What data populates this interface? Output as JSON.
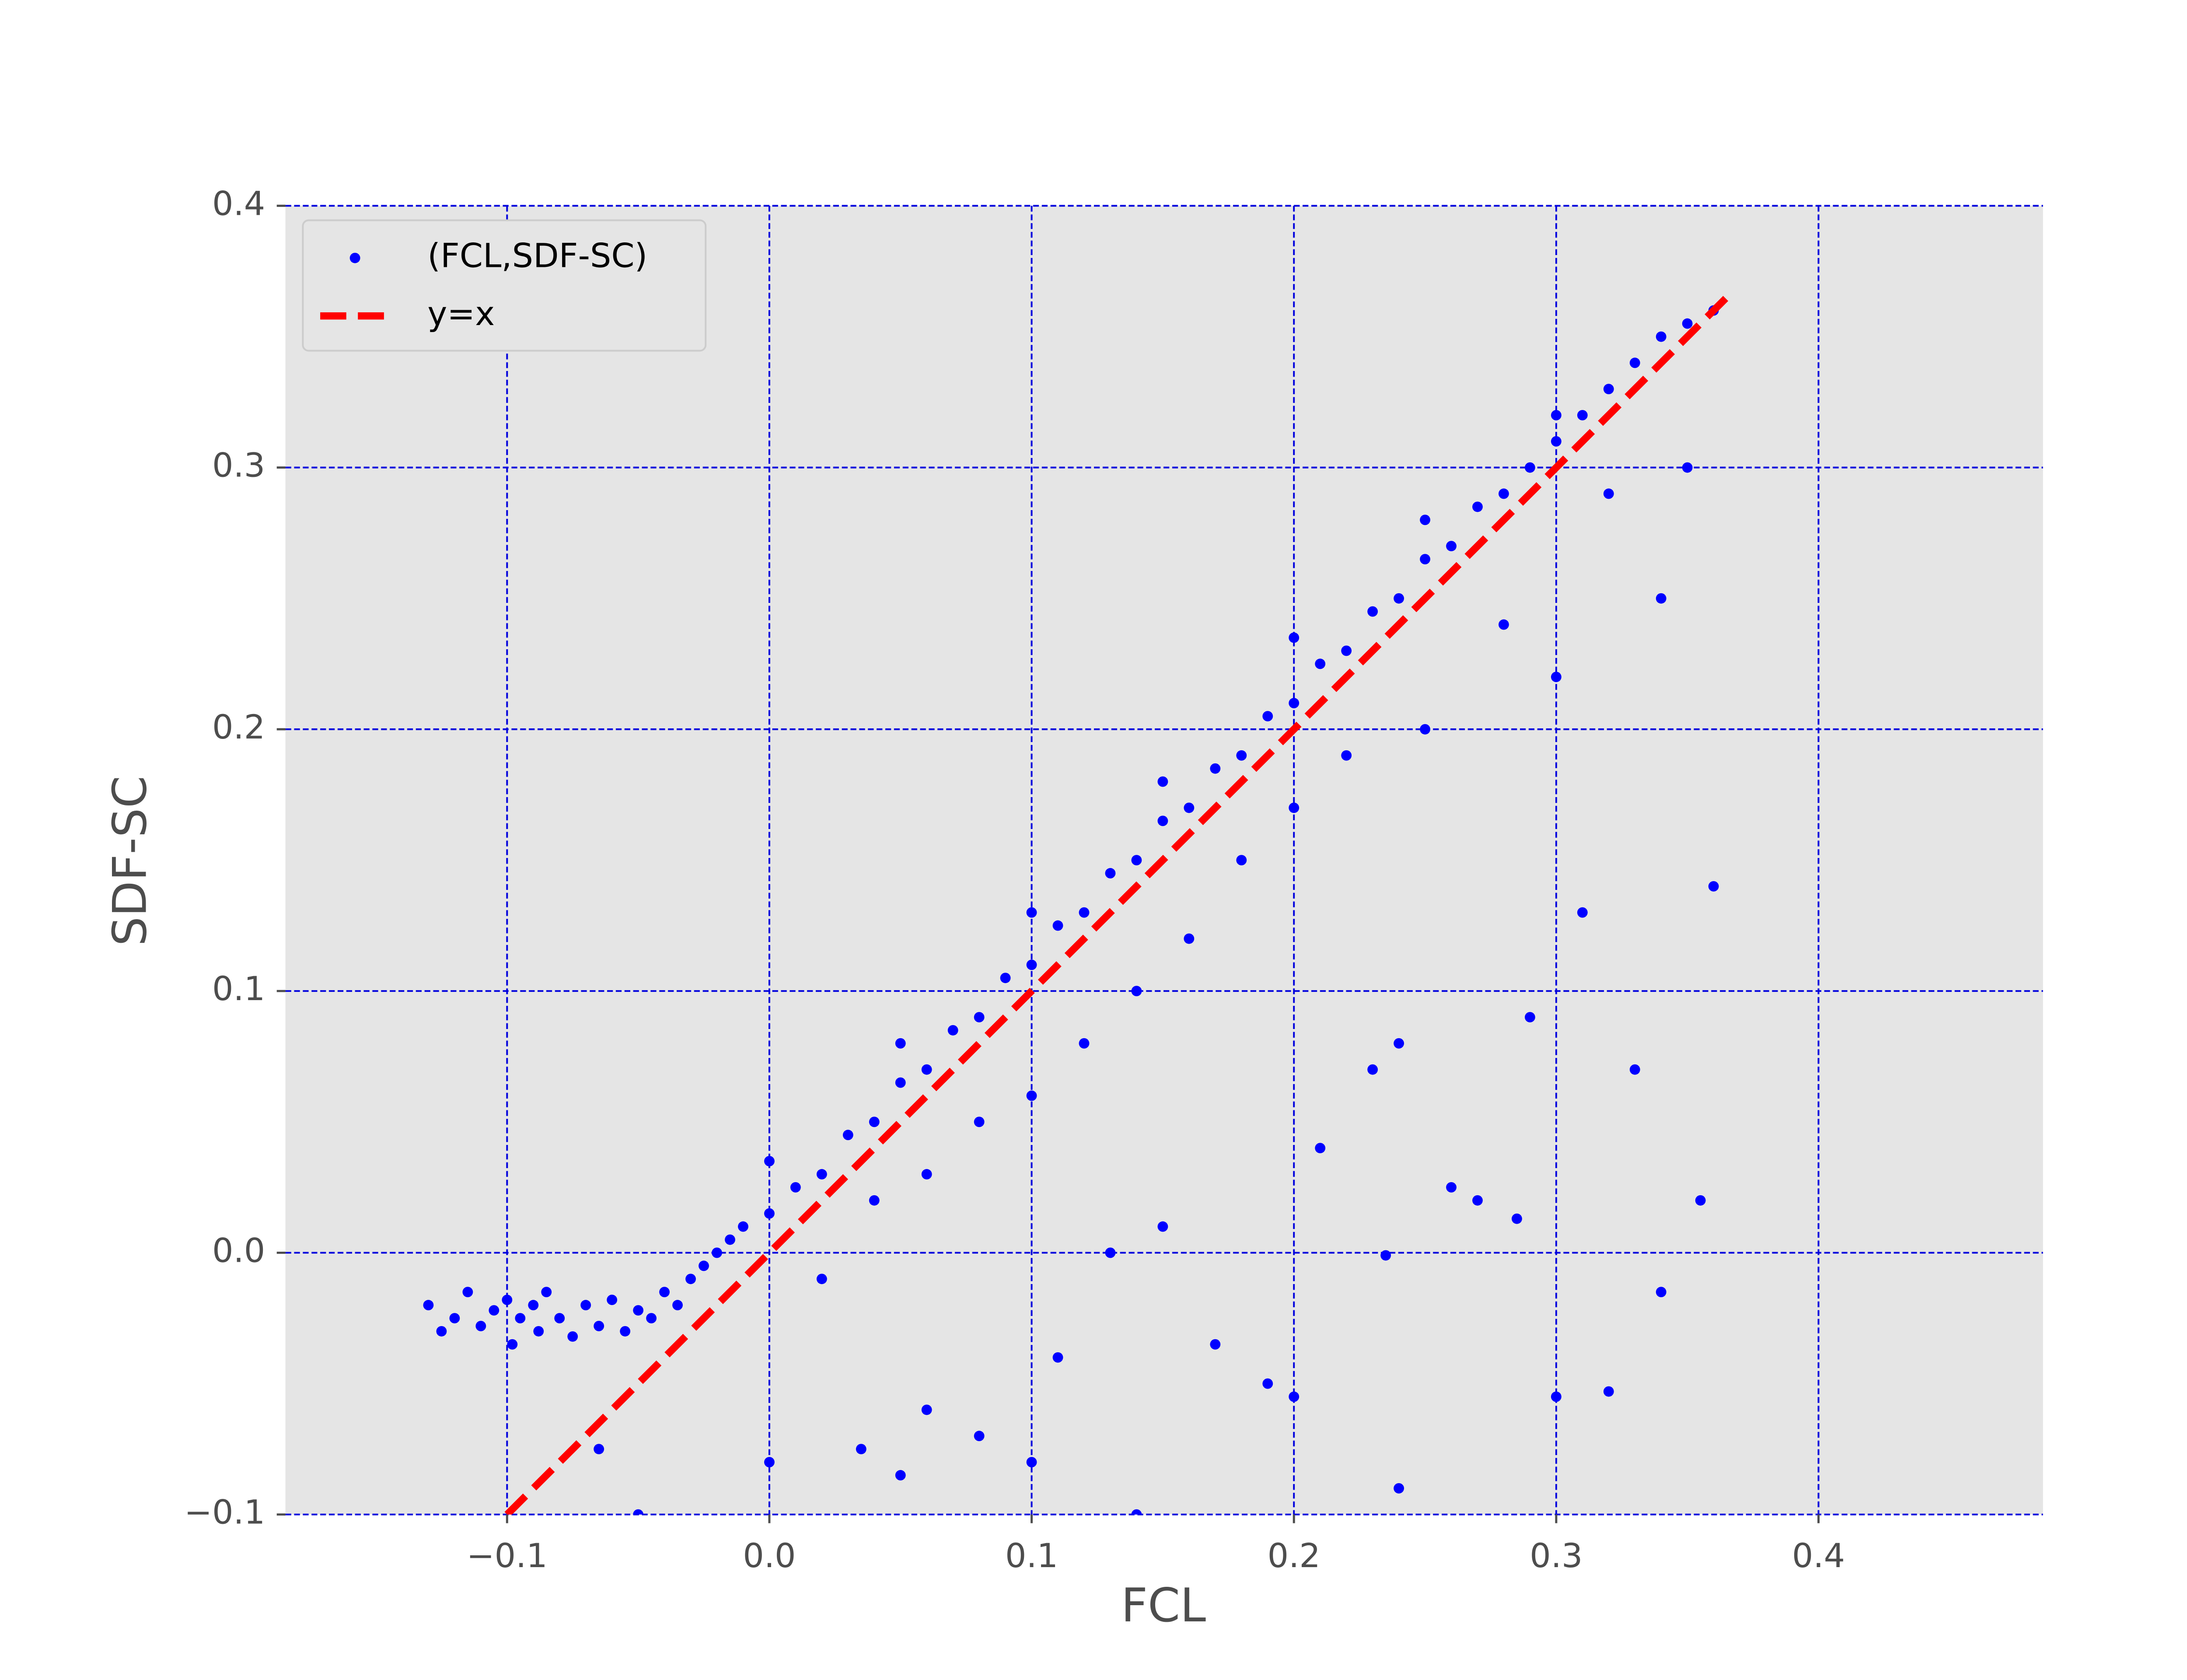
{
  "chart_data": {
    "type": "scatter",
    "xlabel": "FCL",
    "ylabel": "SDF-SC",
    "xlim": [
      -0.1845,
      0.4856
    ],
    "ylim": [
      -0.1,
      0.4
    ],
    "xticks": [
      {
        "value": -0.1,
        "label": "−0.1"
      },
      {
        "value": 0,
        "label": "0.0"
      },
      0.1,
      0.2,
      0.3,
      0.4
    ],
    "yticks": [
      {
        "value": -0.1,
        "label": "−0.1"
      },
      {
        "value": 0,
        "label": "0.0"
      },
      0.1,
      0.2,
      0.3,
      0.4
    ],
    "grid": true,
    "grid_color": "#0000dd",
    "background": "#e5e5e5",
    "legend": "upper left",
    "series": [
      {
        "name": "(FCL,SDF-SC)",
        "type": "scatter",
        "color": "#0000ff",
        "x": [
          -0.13,
          -0.125,
          -0.12,
          -0.115,
          -0.11,
          -0.105,
          -0.1,
          -0.098,
          -0.095,
          -0.09,
          -0.088,
          -0.085,
          -0.08,
          -0.075,
          -0.07,
          -0.065,
          -0.06,
          -0.055,
          -0.05,
          -0.045,
          -0.04,
          -0.035,
          -0.03,
          -0.025,
          -0.02,
          -0.015,
          -0.01,
          0,
          0.01,
          0.02,
          0.03,
          0.04,
          0.05,
          0.06,
          0.07,
          0.08,
          0.09,
          0.1,
          0.11,
          0.12,
          0.13,
          0.14,
          0.15,
          0.16,
          0.17,
          0.18,
          0.19,
          0.2,
          0.21,
          0.22,
          0.23,
          0.24,
          0.25,
          0.26,
          0.27,
          0.28,
          0.29,
          0.3,
          0.31,
          0.32,
          0.33,
          0.34,
          0.35,
          0.36,
          0.05,
          0.1,
          0.15,
          0.2,
          0.25,
          0.3,
          0,
          0.02,
          0.04,
          0.06,
          0.08,
          0.1,
          0.12,
          0.14,
          0.16,
          0.18,
          0.2,
          0.22,
          0.25,
          0.28,
          0.3,
          0.32,
          0.34,
          0.35,
          0.36,
          0.355,
          0.33,
          0.31,
          0.29,
          0.27,
          0.24,
          0.23,
          0.21,
          0.19,
          0.17,
          0.15,
          0.13,
          0.11,
          0.1,
          0.08,
          0.06,
          0.05,
          0.035,
          -0.05,
          -0.065,
          0,
          0.14,
          0.24,
          0.3,
          0.32,
          0.34,
          0.2,
          0.285,
          0.235,
          0.26
        ],
        "values": [
          -0.02,
          -0.03,
          -0.025,
          -0.015,
          -0.028,
          -0.022,
          -0.018,
          -0.035,
          -0.025,
          -0.02,
          -0.03,
          -0.015,
          -0.025,
          -0.032,
          -0.02,
          -0.028,
          -0.018,
          -0.03,
          -0.022,
          -0.025,
          -0.015,
          -0.02,
          -0.01,
          -0.005,
          0,
          0.005,
          0.01,
          0.015,
          0.025,
          0.03,
          0.045,
          0.05,
          0.065,
          0.07,
          0.085,
          0.09,
          0.105,
          0.11,
          0.125,
          0.13,
          0.145,
          0.15,
          0.165,
          0.17,
          0.185,
          0.19,
          0.205,
          0.21,
          0.225,
          0.23,
          0.245,
          0.25,
          0.265,
          0.27,
          0.285,
          0.29,
          0.3,
          0.31,
          0.32,
          0.33,
          0.34,
          0.35,
          0.355,
          0.36,
          0.08,
          0.13,
          0.18,
          0.235,
          0.28,
          0.32,
          0.035,
          -0.01,
          0.02,
          0.03,
          0.05,
          0.06,
          0.08,
          0.1,
          0.12,
          0.15,
          0.17,
          0.19,
          0.2,
          0.24,
          0.22,
          0.29,
          0.25,
          0.3,
          0.14,
          0.02,
          0.07,
          0.13,
          0.09,
          0.02,
          0.08,
          0.07,
          0.04,
          -0.05,
          -0.035,
          0.01,
          0,
          -0.04,
          -0.08,
          -0.07,
          -0.06,
          -0.085,
          -0.075,
          -0.1,
          -0.075,
          -0.08,
          -0.1,
          -0.09,
          -0.055,
          -0.053,
          -0.015,
          -0.055,
          0.013,
          -0.001,
          0.025
        ]
      },
      {
        "name": "y=x",
        "type": "line",
        "color": "#ff0000",
        "x": [
          -0.1,
          0.365
        ],
        "values": [
          -0.1,
          0.365
        ]
      }
    ]
  }
}
